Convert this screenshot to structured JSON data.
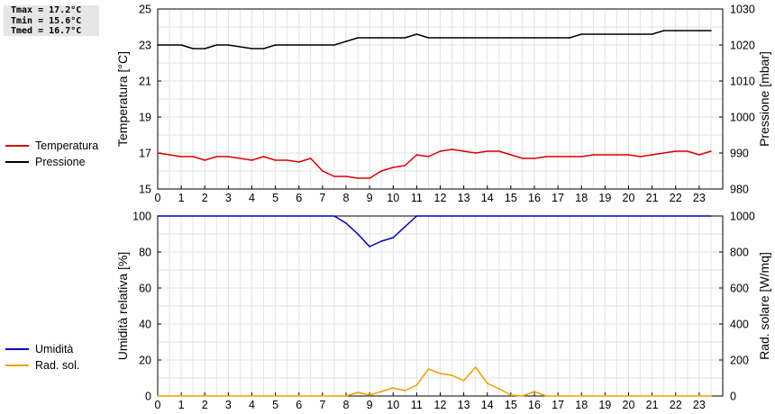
{
  "stats": {
    "tmax": "Tmax = 17.2°C",
    "tmin": "Tmin = 15.6°C",
    "tmed": "Tmed = 16.7°C"
  },
  "legend_top": [
    {
      "label": "Temperatura",
      "color": "#dd0000"
    },
    {
      "label": "Pressione",
      "color": "#000000"
    }
  ],
  "legend_bottom": [
    {
      "label": "Umidità",
      "color": "#0000bb"
    },
    {
      "label": "Rad. sol.",
      "color": "#f0a000"
    }
  ],
  "chart_data": [
    {
      "type": "line",
      "xlim": [
        0,
        24
      ],
      "x_ticks": [
        0,
        1,
        2,
        3,
        4,
        5,
        6,
        7,
        8,
        9,
        10,
        11,
        12,
        13,
        14,
        15,
        16,
        17,
        18,
        19,
        20,
        21,
        22,
        23
      ],
      "ylabel": "Temperatura [°C]",
      "ylim": [
        15,
        25
      ],
      "y_ticks": [
        15,
        17,
        19,
        21,
        23,
        25
      ],
      "y2label": "Pressione [mbar]",
      "y2lim": [
        980,
        1030
      ],
      "y2_ticks": [
        980,
        990,
        1000,
        1010,
        1020,
        1030
      ],
      "grid": true,
      "series": [
        {
          "name": "Temperatura",
          "axis": "left",
          "color": "#dd0000",
          "x": [
            0,
            0.5,
            1,
            1.5,
            2,
            2.5,
            3,
            3.5,
            4,
            4.5,
            5,
            5.5,
            6,
            6.5,
            7,
            7.5,
            8,
            8.5,
            9,
            9.5,
            10,
            10.5,
            11,
            11.5,
            12,
            12.5,
            13,
            13.5,
            14,
            14.5,
            15,
            15.5,
            16,
            16.5,
            17,
            17.5,
            18,
            18.5,
            19,
            19.5,
            20,
            20.5,
            21,
            21.5,
            22,
            22.5,
            23,
            23.5
          ],
          "values": [
            17.0,
            16.9,
            16.8,
            16.8,
            16.6,
            16.8,
            16.8,
            16.7,
            16.6,
            16.8,
            16.6,
            16.6,
            16.5,
            16.7,
            16.0,
            15.7,
            15.7,
            15.6,
            15.6,
            16.0,
            16.2,
            16.3,
            16.9,
            16.8,
            17.1,
            17.2,
            17.1,
            17.0,
            17.1,
            17.1,
            16.9,
            16.7,
            16.7,
            16.8,
            16.8,
            16.8,
            16.8,
            16.9,
            16.9,
            16.9,
            16.9,
            16.8,
            16.9,
            17.0,
            17.1,
            17.1,
            16.9,
            17.1
          ]
        },
        {
          "name": "Pressione",
          "axis": "right",
          "color": "#000000",
          "x": [
            0,
            1,
            1.5,
            2,
            2.5,
            3,
            4,
            4.5,
            5,
            5.5,
            6,
            7,
            7.5,
            8,
            8.5,
            9,
            10,
            10.5,
            11,
            11.5,
            12,
            13,
            14,
            15,
            16,
            17,
            17.5,
            18,
            19,
            20,
            21,
            21.5,
            22,
            23,
            23.5
          ],
          "values": [
            1020,
            1020,
            1019,
            1019,
            1020,
            1020,
            1019,
            1019,
            1020,
            1020,
            1020,
            1020,
            1020,
            1021,
            1022,
            1022,
            1022,
            1022,
            1023,
            1022,
            1022,
            1022,
            1022,
            1022,
            1022,
            1022,
            1022,
            1023,
            1023,
            1023,
            1023,
            1024,
            1024,
            1024,
            1024
          ]
        }
      ]
    },
    {
      "type": "line",
      "xlim": [
        0,
        24
      ],
      "x_ticks": [
        0,
        1,
        2,
        3,
        4,
        5,
        6,
        7,
        8,
        9,
        10,
        11,
        12,
        13,
        14,
        15,
        16,
        17,
        18,
        19,
        20,
        21,
        22,
        23
      ],
      "ylabel": "Umidità relativa [%]",
      "ylim": [
        0,
        100
      ],
      "y_ticks": [
        0,
        20,
        40,
        60,
        80,
        100
      ],
      "y2label": "Rad. solare [W/mq]",
      "y2lim": [
        0,
        1000
      ],
      "y2_ticks": [
        0,
        200,
        400,
        600,
        800,
        1000
      ],
      "grid": true,
      "series": [
        {
          "name": "Umidità",
          "axis": "left",
          "color": "#0000bb",
          "x": [
            0,
            7.5,
            8,
            8.5,
            9,
            9.5,
            10,
            10.5,
            11,
            23.5
          ],
          "values": [
            100,
            100,
            96,
            90,
            83,
            86,
            88,
            94,
            100,
            100
          ]
        },
        {
          "name": "Rad. sol.",
          "axis": "right",
          "color": "#f0a000",
          "x": [
            0,
            8,
            8.5,
            9,
            9.5,
            10,
            10.5,
            11,
            11.5,
            12,
            12.5,
            13,
            13.5,
            14,
            14.5,
            15,
            15.5,
            16,
            16.5,
            17,
            23.5
          ],
          "values": [
            0,
            0,
            20,
            5,
            25,
            45,
            30,
            60,
            150,
            125,
            115,
            85,
            160,
            70,
            40,
            5,
            0,
            25,
            0,
            0,
            0
          ]
        }
      ]
    }
  ]
}
